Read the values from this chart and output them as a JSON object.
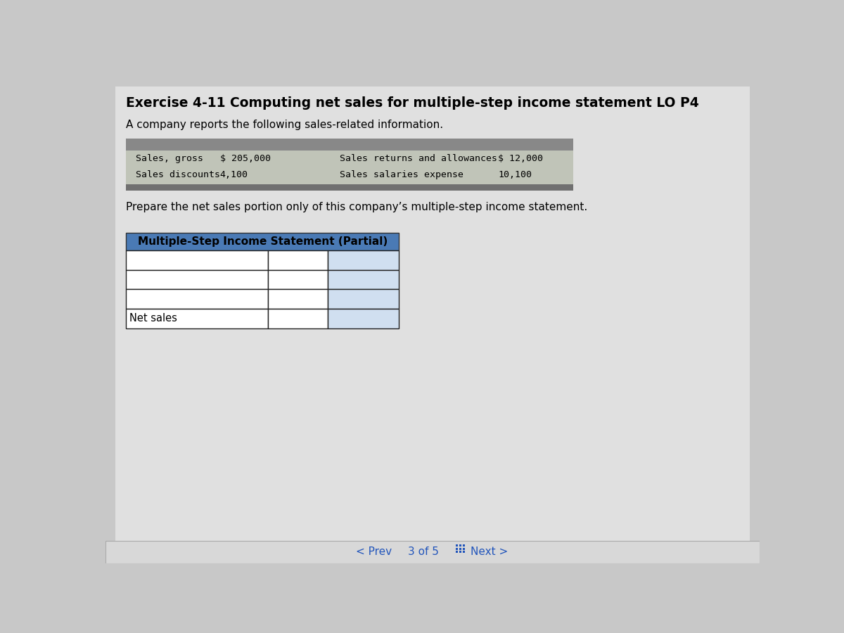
{
  "title": "Exercise 4-11 Computing net sales for multiple-step income statement LO P4",
  "subtitle": "A company reports the following sales-related information.",
  "instruction": "Prepare the net sales portion only of this company’s multiple-step income statement.",
  "table_title": "Multiple-Step Income Statement (Partial)",
  "info_rows": [
    [
      "Sales, gross",
      "$ 205,000",
      "Sales returns and allowances",
      "$ 12,000"
    ],
    [
      "Sales discounts",
      "4,100",
      "Sales salaries expense",
      "10,100"
    ]
  ],
  "table_header_bg": "#4a7ab5",
  "table_header_text": "#000000",
  "row_labels": [
    "",
    "",
    "",
    "Net sales"
  ],
  "bg_color": "#c8c8c8",
  "page_bg": "#e0e0e0",
  "info_top_bar": "#888888",
  "info_body_bg": "#c0c4b8",
  "info_bottom_bar": "#707070",
  "cell_white": "#ffffff",
  "cell_blue_tint": "#d0dff0",
  "nav_color": "#2255bb"
}
